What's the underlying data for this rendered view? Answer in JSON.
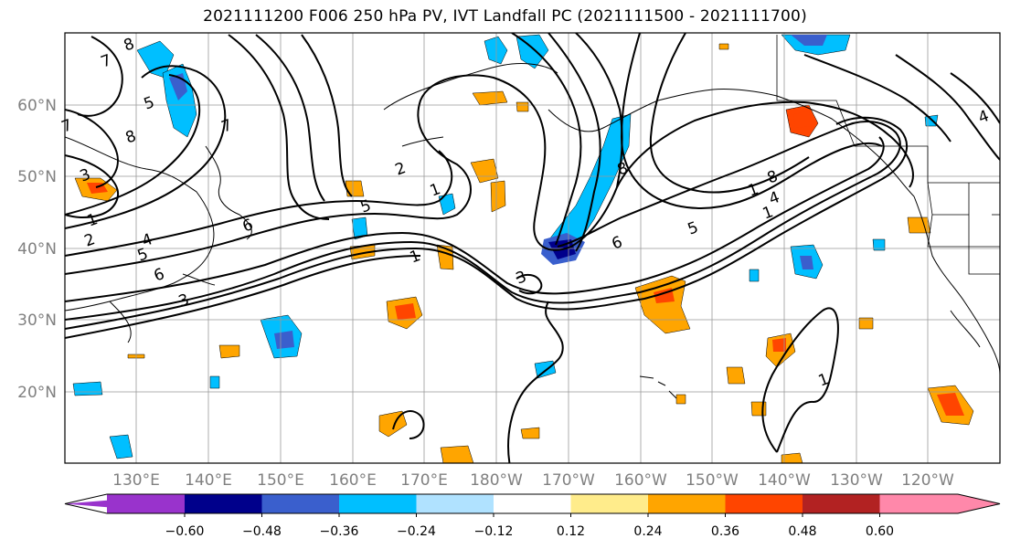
{
  "title": "2021111200 F006 250 hPa PV, IVT Landfall PC (2021111500 - 2021111700)",
  "map": {
    "lat_labels": [
      "60°N",
      "50°N",
      "40°N",
      "30°N",
      "20°N"
    ],
    "lon_labels": [
      "130°E",
      "140°E",
      "150°E",
      "160°E",
      "170°E",
      "180°W",
      "170°W",
      "160°W",
      "150°W",
      "140°W",
      "130°W",
      "120°W"
    ],
    "contour_labels": [
      "8",
      "7",
      "5",
      "7",
      "8",
      "3",
      "7",
      "6",
      "1",
      "2",
      "4",
      "5",
      "6",
      "3",
      "2",
      "1",
      "5",
      "1",
      "3",
      "1",
      "6",
      "8",
      "5",
      "1",
      "4",
      "8",
      "4",
      "1"
    ]
  },
  "colorbar": {
    "tick_labels": [
      "−0.60",
      "−0.48",
      "−0.36",
      "−0.24",
      "−0.12",
      "0.12",
      "0.24",
      "0.36",
      "0.48",
      "0.60"
    ],
    "colors": [
      "#9933cc",
      "#00008b",
      "#3a5fcd",
      "#00bfff",
      "#b0e2ff",
      "#ffffff",
      "#ffec8b",
      "#ffa500",
      "#ff4500",
      "#b22222",
      "#ff88aa"
    ]
  }
}
